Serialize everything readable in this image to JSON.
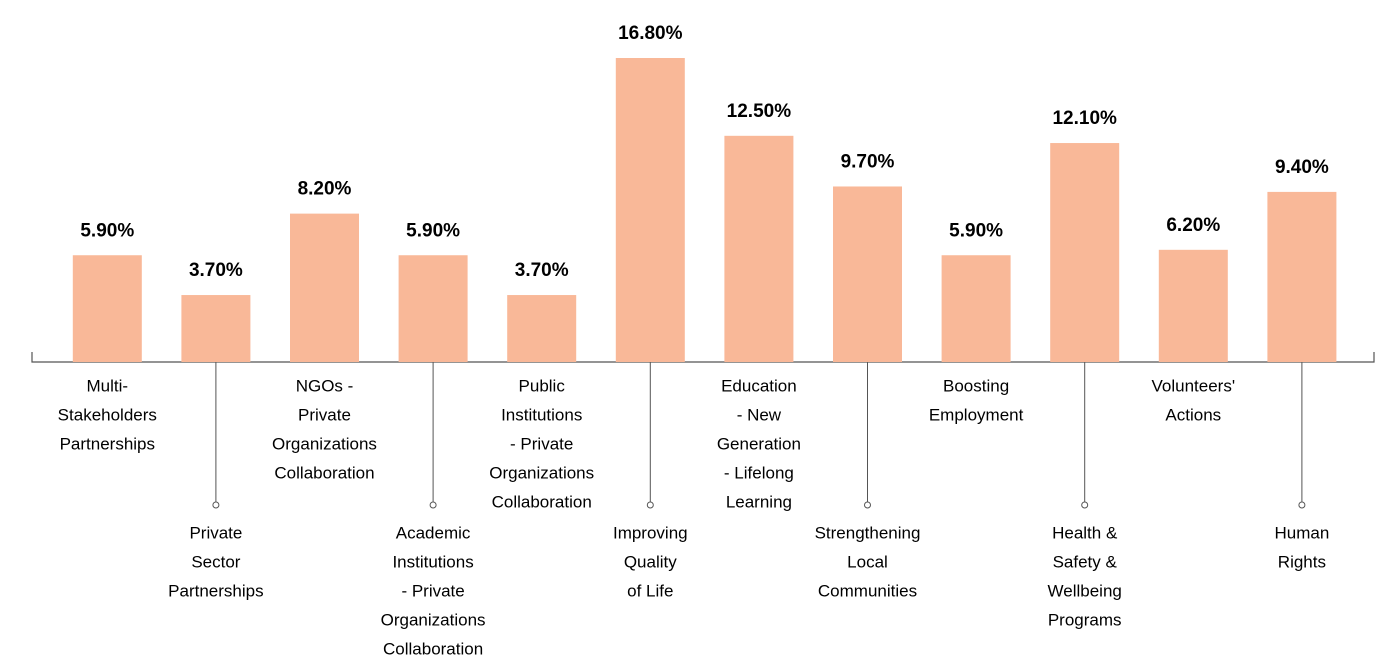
{
  "chart_data": {
    "type": "bar",
    "categories": [
      [
        "Multi-",
        "Stakeholders",
        "Partnerships"
      ],
      [
        "Private",
        "Sector",
        "Partnerships"
      ],
      [
        "NGOs -",
        "Private",
        "Organizations",
        "Collaboration"
      ],
      [
        "Academic",
        "Institutions",
        "- Private",
        "Organizations",
        "Collaboration"
      ],
      [
        "Public",
        "Institutions",
        "- Private",
        "Organizations",
        "Collaboration"
      ],
      [
        "Improving",
        "Quality",
        "of Life"
      ],
      [
        "Education",
        "- New",
        "Generation",
        "- Lifelong",
        "Learning"
      ],
      [
        "Strengthening",
        "Local",
        "Communities"
      ],
      [
        "Boosting",
        "Employment"
      ],
      [
        "Health &",
        "Safety &",
        "Wellbeing",
        "Programs"
      ],
      [
        "Volunteers'",
        "Actions"
      ],
      [
        "Human",
        "Rights"
      ]
    ],
    "values": [
      5.9,
      3.7,
      8.2,
      5.9,
      3.7,
      16.8,
      12.5,
      9.7,
      5.9,
      12.1,
      6.2,
      9.4
    ],
    "value_labels": [
      "5.90%",
      "3.70%",
      "8.20%",
      "5.90%",
      "3.70%",
      "16.80%",
      "12.50%",
      "9.70%",
      "5.90%",
      "12.10%",
      "6.20%",
      "9.40%"
    ],
    "color": "#f9b898"
  }
}
